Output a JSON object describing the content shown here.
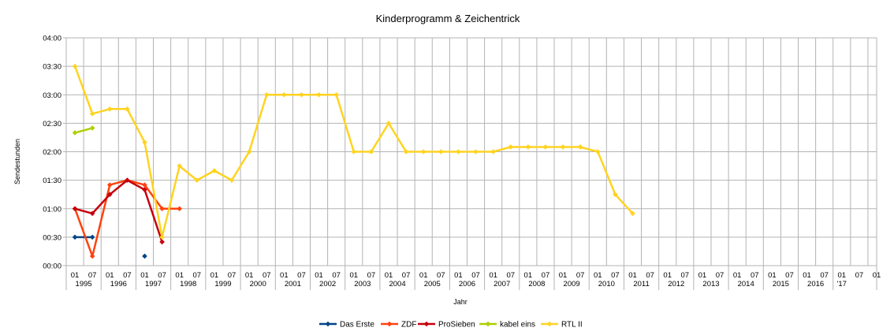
{
  "chart_data": {
    "type": "line",
    "title": "Kinderprogramm & Zeichentrick",
    "xlabel": "Jahr",
    "ylabel": "Sendestunden",
    "y_unit": "minutes",
    "ylim": [
      0,
      240
    ],
    "y_ticks": [
      {
        "value": 0,
        "label": "00:00"
      },
      {
        "value": 30,
        "label": "00:30"
      },
      {
        "value": 60,
        "label": "01:00"
      },
      {
        "value": 90,
        "label": "01:30"
      },
      {
        "value": 120,
        "label": "02:00"
      },
      {
        "value": 150,
        "label": "02:30"
      },
      {
        "value": 180,
        "label": "03:00"
      },
      {
        "value": 210,
        "label": "03:30"
      },
      {
        "value": 240,
        "label": "04:00"
      }
    ],
    "x_ticks": [
      "01",
      "07",
      "01",
      "07",
      "01",
      "07",
      "01",
      "07",
      "01",
      "07",
      "01",
      "07",
      "01",
      "07",
      "01",
      "07",
      "01",
      "07",
      "01",
      "07",
      "01",
      "07",
      "01",
      "07",
      "01",
      "07",
      "01",
      "07",
      "01",
      "07",
      "01",
      "07",
      "01",
      "07",
      "01",
      "07",
      "01",
      "07",
      "01",
      "07",
      "01",
      "07",
      "01",
      "07",
      "01",
      "07",
      "01"
    ],
    "x_year_groups": [
      {
        "label": "1995",
        "span": 2
      },
      {
        "label": "1996",
        "span": 2
      },
      {
        "label": "1997",
        "span": 2
      },
      {
        "label": "1998",
        "span": 2
      },
      {
        "label": "1999",
        "span": 2
      },
      {
        "label": "2000",
        "span": 2
      },
      {
        "label": "2001",
        "span": 2
      },
      {
        "label": "2002",
        "span": 2
      },
      {
        "label": "2003",
        "span": 2
      },
      {
        "label": "2004",
        "span": 2
      },
      {
        "label": "2005",
        "span": 2
      },
      {
        "label": "2006",
        "span": 2
      },
      {
        "label": "2007",
        "span": 2
      },
      {
        "label": "2008",
        "span": 2
      },
      {
        "label": "2009",
        "span": 2
      },
      {
        "label": "2010",
        "span": 2
      },
      {
        "label": "2011",
        "span": 2
      },
      {
        "label": "2012",
        "span": 2
      },
      {
        "label": "2013",
        "span": 2
      },
      {
        "label": "2014",
        "span": 2
      },
      {
        "label": "2015",
        "span": 2
      },
      {
        "label": "2016",
        "span": 2
      },
      {
        "label": "'17",
        "span": 1
      }
    ],
    "grid": true,
    "legend_position": "bottom",
    "series": [
      {
        "name": "Das Erste",
        "color": "#004586",
        "points": [
          {
            "x": 0,
            "y": 30
          },
          {
            "x": 1,
            "y": 30
          },
          {
            "x": 4,
            "y": 10
          }
        ],
        "segments": [
          [
            0,
            1
          ]
        ]
      },
      {
        "name": "ZDF",
        "color": "#ff420e",
        "points": [
          {
            "x": 0,
            "y": 60
          },
          {
            "x": 1,
            "y": 10
          },
          {
            "x": 2,
            "y": 85
          },
          {
            "x": 3,
            "y": 90
          },
          {
            "x": 4,
            "y": 85
          },
          {
            "x": 5,
            "y": 60
          },
          {
            "x": 6,
            "y": 60
          }
        ],
        "segments": [
          [
            0,
            1,
            2,
            3,
            4,
            5,
            6
          ]
        ]
      },
      {
        "name": "ProSieben",
        "color": "#c5000b",
        "points": [
          {
            "x": 0,
            "y": 60
          },
          {
            "x": 1,
            "y": 55
          },
          {
            "x": 2,
            "y": 75
          },
          {
            "x": 3,
            "y": 90
          },
          {
            "x": 4,
            "y": 80
          },
          {
            "x": 5,
            "y": 25
          }
        ],
        "segments": [
          [
            0,
            1,
            2,
            3,
            4,
            5
          ]
        ]
      },
      {
        "name": "kabel eins",
        "color": "#aecf00",
        "points": [
          {
            "x": 0,
            "y": 140
          },
          {
            "x": 1,
            "y": 145
          }
        ],
        "segments": [
          [
            0,
            1
          ]
        ]
      },
      {
        "name": "RTL II",
        "color": "#ffd320",
        "points": [
          {
            "x": 0,
            "y": 210
          },
          {
            "x": 1,
            "y": 160
          },
          {
            "x": 2,
            "y": 165
          },
          {
            "x": 3,
            "y": 165
          },
          {
            "x": 4,
            "y": 130
          },
          {
            "x": 5,
            "y": 30
          },
          {
            "x": 6,
            "y": 105
          },
          {
            "x": 7,
            "y": 90
          },
          {
            "x": 8,
            "y": 100
          },
          {
            "x": 9,
            "y": 90
          },
          {
            "x": 10,
            "y": 120
          },
          {
            "x": 11,
            "y": 180
          },
          {
            "x": 12,
            "y": 180
          },
          {
            "x": 13,
            "y": 180
          },
          {
            "x": 14,
            "y": 180
          },
          {
            "x": 15,
            "y": 180
          },
          {
            "x": 16,
            "y": 120
          },
          {
            "x": 17,
            "y": 120
          },
          {
            "x": 18,
            "y": 150
          },
          {
            "x": 19,
            "y": 120
          },
          {
            "x": 20,
            "y": 120
          },
          {
            "x": 21,
            "y": 120
          },
          {
            "x": 22,
            "y": 120
          },
          {
            "x": 23,
            "y": 120
          },
          {
            "x": 24,
            "y": 120
          },
          {
            "x": 25,
            "y": 125
          },
          {
            "x": 26,
            "y": 125
          },
          {
            "x": 27,
            "y": 125
          },
          {
            "x": 28,
            "y": 125
          },
          {
            "x": 29,
            "y": 125
          },
          {
            "x": 30,
            "y": 120
          },
          {
            "x": 31,
            "y": 75
          },
          {
            "x": 32,
            "y": 55
          }
        ],
        "segments": [
          [
            0,
            1,
            2,
            3,
            4,
            5,
            6,
            7,
            8,
            9,
            10,
            11,
            12,
            13,
            14,
            15,
            16,
            17,
            18,
            19,
            20,
            21,
            22,
            23,
            24,
            25,
            26,
            27,
            28,
            29,
            30,
            31,
            32
          ]
        ]
      }
    ]
  }
}
